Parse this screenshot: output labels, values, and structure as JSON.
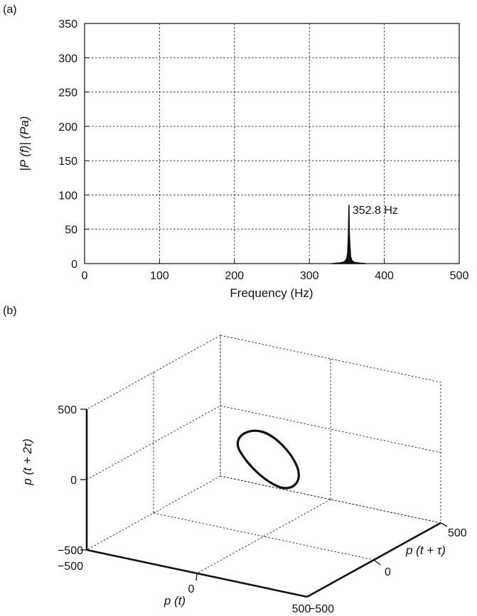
{
  "chart_data": [
    {
      "panel": "(a)",
      "type": "line",
      "xlabel": "Frequency (Hz)",
      "ylabel": "|P (f)| (Pa)",
      "xlim": [
        0,
        500
      ],
      "ylim": [
        0,
        350
      ],
      "xticks": [
        "0",
        "100",
        "200",
        "300",
        "400",
        "500"
      ],
      "yticks": [
        "0",
        "50",
        "100",
        "150",
        "200",
        "250",
        "300",
        "350"
      ],
      "grid": true,
      "series": [
        {
          "x": [
            330,
            340,
            345,
            348,
            350,
            351,
            352,
            352.8,
            353.5,
            355,
            357,
            360,
            365,
            375
          ],
          "y": [
            0,
            1,
            2,
            4,
            8,
            15,
            40,
            85,
            40,
            10,
            4,
            2,
            1,
            0
          ]
        }
      ],
      "annotations": [
        {
          "x": 352.8,
          "y": 85,
          "text": "352.8 Hz"
        }
      ]
    },
    {
      "panel": "(b)",
      "type": "line3d",
      "xlabel": "p (t)",
      "ylabel": "p (t + τ)",
      "zlabel": "p (t + 2τ)",
      "xlim": [
        -500,
        500
      ],
      "ylim": [
        -500,
        500
      ],
      "zlim": [
        -500,
        500
      ],
      "xticks": [
        "−500",
        "0",
        "500"
      ],
      "yticks": [
        "−500",
        "0",
        "500"
      ],
      "zticks": [
        "−500",
        "0",
        "500"
      ],
      "grid": true,
      "series": [
        {
          "description": "closed orbit (limit cycle)",
          "center": [
            0,
            0,
            0
          ],
          "amplitude": 90
        }
      ]
    }
  ]
}
